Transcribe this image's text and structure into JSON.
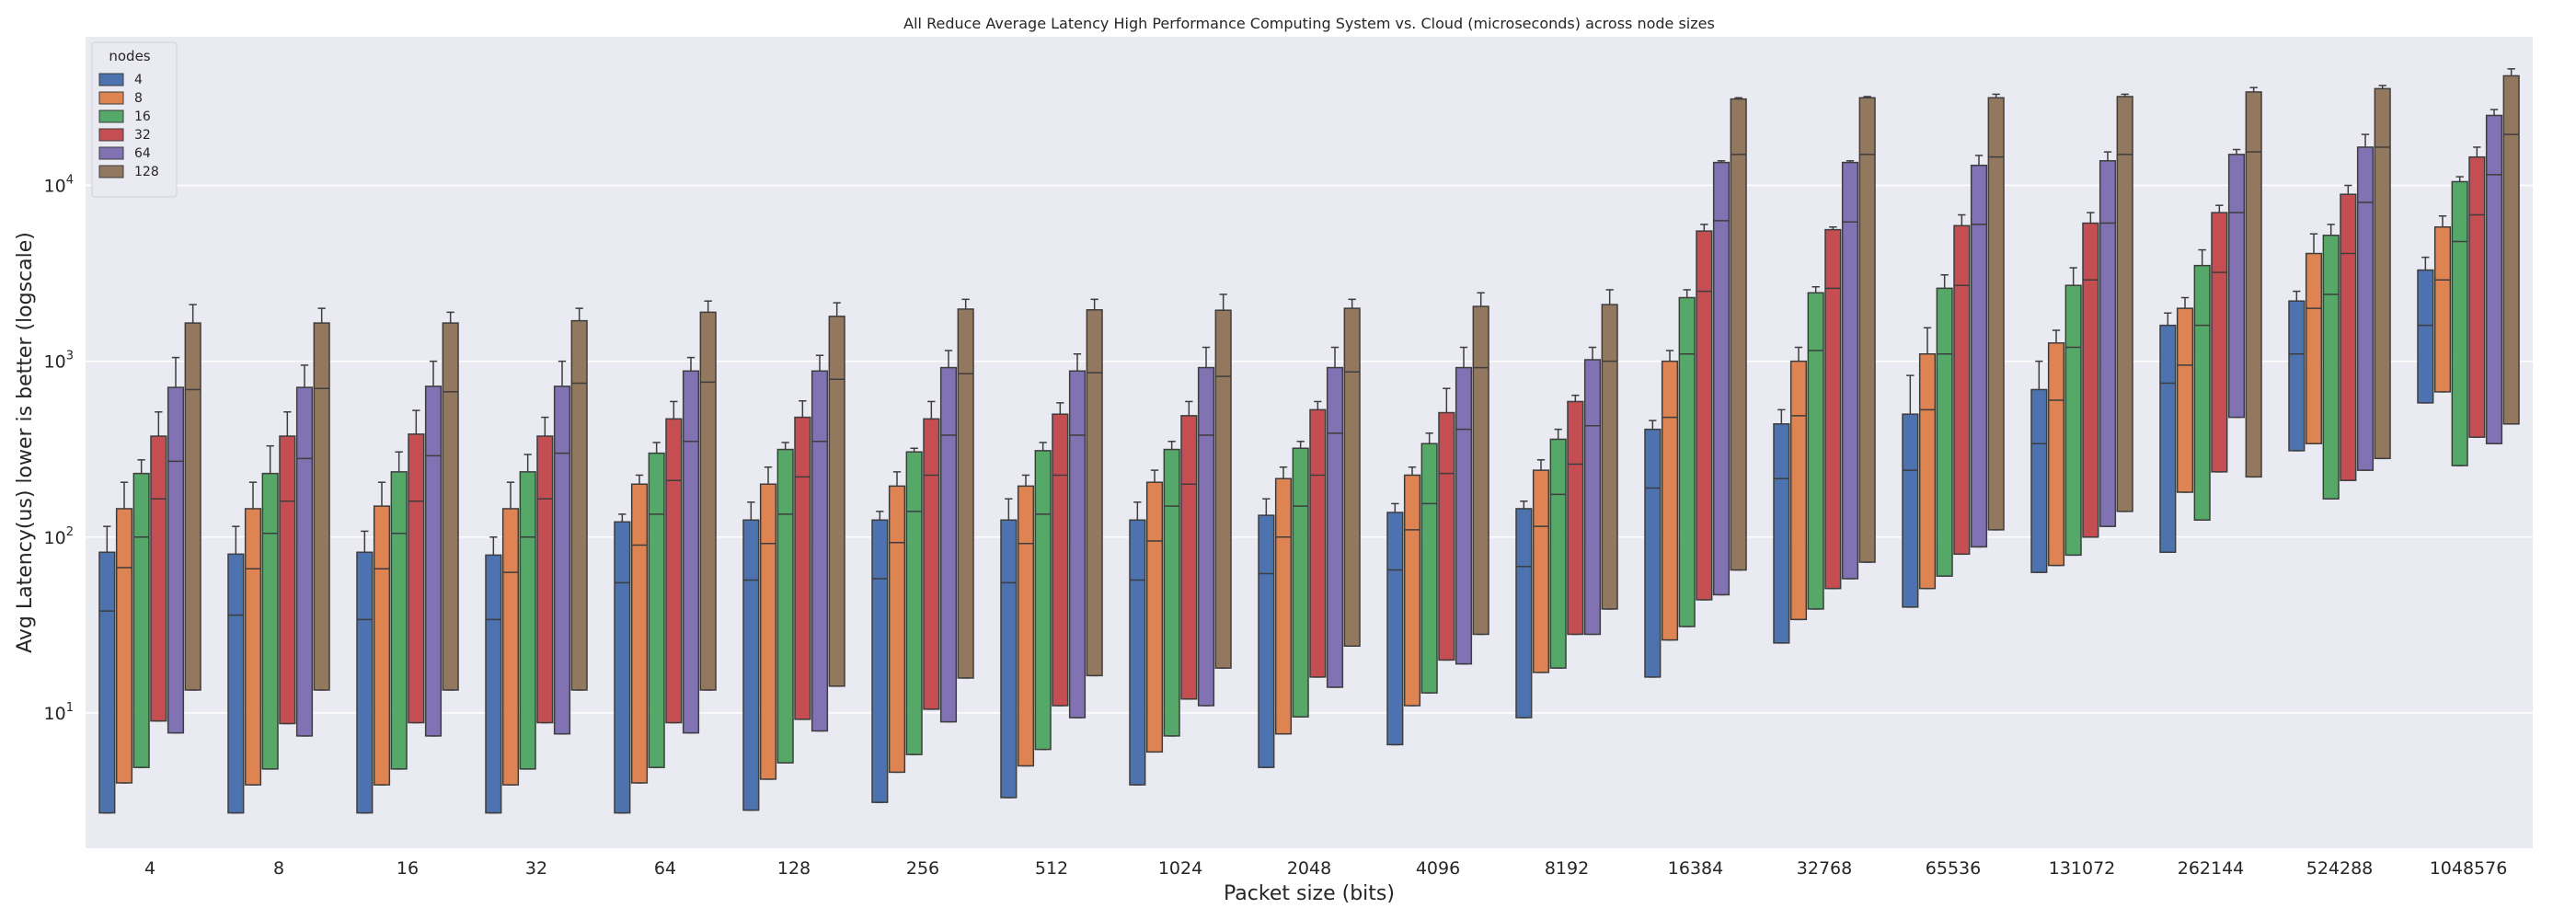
{
  "chart_data": {
    "type": "box",
    "title": "All Reduce Average Latency High Performance Computing System vs. Cloud (microseconds) across node sizes",
    "xlabel": "Packet size (bits)",
    "ylabel": "Avg Latency(us) lower is better (logscale)",
    "yscale": "log",
    "ylim": [
      1.7,
      70000
    ],
    "y_ticks": [
      {
        "value": 10,
        "base": "10",
        "exp": "1"
      },
      {
        "value": 100,
        "base": "10",
        "exp": "2"
      },
      {
        "value": 1000,
        "base": "10",
        "exp": "3"
      },
      {
        "value": 10000,
        "base": "10",
        "exp": "4"
      }
    ],
    "grid": true,
    "legend": {
      "title": "nodes",
      "position": "top-left"
    },
    "categories": [
      "4",
      "8",
      "16",
      "32",
      "64",
      "128",
      "256",
      "512",
      "1024",
      "2048",
      "4096",
      "8192",
      "16384",
      "32768",
      "65536",
      "131072",
      "262144",
      "524288",
      "1048576"
    ],
    "series": [
      {
        "name": "4",
        "color": "#4c72b0",
        "boxes": [
          [
            2.7,
            2.7,
            38,
            82,
            115
          ],
          [
            2.7,
            2.7,
            36,
            80,
            115
          ],
          [
            2.7,
            2.7,
            34,
            82,
            108
          ],
          [
            2.7,
            2.7,
            34,
            79,
            100
          ],
          [
            2.7,
            2.7,
            55,
            122,
            135
          ],
          [
            2.8,
            2.8,
            57,
            125,
            158
          ],
          [
            3.1,
            3.1,
            58,
            125,
            140
          ],
          [
            3.3,
            3.3,
            55,
            125,
            165
          ],
          [
            3.9,
            3.9,
            57,
            125,
            158
          ],
          [
            4.9,
            4.9,
            62,
            133,
            165
          ],
          [
            6.6,
            6.6,
            65,
            138,
            155
          ],
          [
            9.4,
            9.4,
            68,
            145,
            160
          ],
          [
            16,
            16,
            190,
            410,
            460
          ],
          [
            25,
            25,
            215,
            440,
            530
          ],
          [
            40,
            40,
            240,
            500,
            830
          ],
          [
            63,
            63,
            340,
            690,
            1000
          ],
          [
            82,
            82,
            750,
            1600,
            1880
          ],
          [
            310,
            310,
            1100,
            2200,
            2500
          ],
          [
            580,
            580,
            1600,
            3300,
            3900
          ]
        ]
      },
      {
        "name": "8",
        "color": "#dd8452",
        "boxes": [
          [
            4.0,
            4.0,
            67,
            145,
            205
          ],
          [
            3.9,
            3.9,
            66,
            145,
            205
          ],
          [
            3.9,
            3.9,
            66,
            150,
            205
          ],
          [
            3.9,
            3.9,
            63,
            145,
            205
          ],
          [
            4.0,
            4.0,
            90,
            200,
            225
          ],
          [
            4.2,
            4.2,
            92,
            200,
            250
          ],
          [
            4.6,
            4.6,
            93,
            195,
            235
          ],
          [
            5.0,
            5.0,
            92,
            195,
            225
          ],
          [
            6.0,
            6.0,
            95,
            205,
            240
          ],
          [
            7.6,
            7.6,
            100,
            215,
            250
          ],
          [
            11,
            11,
            110,
            225,
            250
          ],
          [
            17,
            17,
            115,
            240,
            275
          ],
          [
            26,
            26,
            480,
            1000,
            1150
          ],
          [
            34,
            34,
            490,
            1000,
            1200
          ],
          [
            51,
            51,
            530,
            1100,
            1550
          ],
          [
            69,
            69,
            600,
            1270,
            1500
          ],
          [
            180,
            180,
            950,
            2000,
            2300
          ],
          [
            340,
            340,
            2000,
            4100,
            5300
          ],
          [
            670,
            670,
            2900,
            5800,
            6700
          ]
        ]
      },
      {
        "name": "16",
        "color": "#55a868",
        "boxes": [
          [
            4.9,
            4.9,
            100,
            230,
            275
          ],
          [
            4.8,
            4.8,
            105,
            230,
            330
          ],
          [
            4.8,
            4.8,
            105,
            235,
            305
          ],
          [
            4.8,
            4.8,
            100,
            235,
            295
          ],
          [
            4.9,
            4.9,
            135,
            300,
            345
          ],
          [
            5.2,
            5.2,
            135,
            315,
            345
          ],
          [
            5.8,
            5.8,
            140,
            305,
            320
          ],
          [
            6.2,
            6.2,
            135,
            310,
            345
          ],
          [
            7.4,
            7.4,
            150,
            315,
            350
          ],
          [
            9.5,
            9.5,
            150,
            320,
            350
          ],
          [
            13,
            13,
            155,
            340,
            390
          ],
          [
            18,
            18,
            175,
            360,
            410
          ],
          [
            31,
            31,
            1100,
            2300,
            2550
          ],
          [
            39,
            39,
            1150,
            2450,
            2650
          ],
          [
            60,
            60,
            1100,
            2600,
            3100
          ],
          [
            79,
            79,
            1200,
            2700,
            3400
          ],
          [
            125,
            125,
            1600,
            3500,
            4300
          ],
          [
            165,
            165,
            2400,
            5200,
            6000
          ],
          [
            255,
            255,
            4800,
            10500,
            11200
          ]
        ]
      },
      {
        "name": "32",
        "color": "#c44e52",
        "boxes": [
          [
            9.0,
            9.0,
            165,
            375,
            515
          ],
          [
            8.7,
            8.7,
            160,
            375,
            515
          ],
          [
            8.8,
            8.8,
            160,
            385,
            525
          ],
          [
            8.8,
            8.8,
            165,
            375,
            480
          ],
          [
            8.8,
            8.8,
            210,
            470,
            590
          ],
          [
            9.2,
            9.2,
            220,
            480,
            595
          ],
          [
            10.5,
            10.5,
            225,
            470,
            590
          ],
          [
            11,
            11,
            225,
            500,
            580
          ],
          [
            12,
            12,
            200,
            490,
            590
          ],
          [
            16,
            16,
            225,
            530,
            590
          ],
          [
            20,
            20,
            230,
            510,
            700
          ],
          [
            28,
            28,
            260,
            590,
            640
          ],
          [
            44,
            44,
            2500,
            5500,
            6000
          ],
          [
            51,
            51,
            2600,
            5600,
            5800
          ],
          [
            80,
            80,
            2700,
            5900,
            6800
          ],
          [
            100,
            100,
            2900,
            6100,
            7000
          ],
          [
            235,
            235,
            3200,
            7000,
            7700
          ],
          [
            210,
            210,
            4100,
            8900,
            10000
          ],
          [
            370,
            370,
            6800,
            14500,
            16500
          ]
        ]
      },
      {
        "name": "64",
        "color": "#8172b3",
        "boxes": [
          [
            7.7,
            7.7,
            270,
            710,
            1050
          ],
          [
            7.4,
            7.4,
            280,
            710,
            950
          ],
          [
            7.4,
            7.4,
            290,
            720,
            1000
          ],
          [
            7.6,
            7.6,
            300,
            720,
            1000
          ],
          [
            7.7,
            7.7,
            350,
            880,
            1050
          ],
          [
            7.9,
            7.9,
            350,
            880,
            1080
          ],
          [
            8.9,
            8.9,
            380,
            920,
            1150
          ],
          [
            9.4,
            9.4,
            380,
            880,
            1100
          ],
          [
            11,
            11,
            380,
            920,
            1200
          ],
          [
            14,
            14,
            390,
            920,
            1200
          ],
          [
            19,
            19,
            410,
            920,
            1200
          ],
          [
            28,
            28,
            430,
            1020,
            1200
          ],
          [
            47,
            47,
            6300,
            13500,
            13800
          ],
          [
            58,
            58,
            6200,
            13500,
            13800
          ],
          [
            88,
            88,
            6000,
            13000,
            14800
          ],
          [
            115,
            115,
            6100,
            13800,
            15500
          ],
          [
            480,
            480,
            7000,
            15000,
            16000
          ],
          [
            240,
            240,
            8000,
            16500,
            19500
          ],
          [
            340,
            340,
            11500,
            25000,
            27000
          ]
        ]
      },
      {
        "name": "128",
        "color": "#937860",
        "boxes": [
          [
            13.5,
            13.5,
            690,
            1650,
            2100
          ],
          [
            13.5,
            13.5,
            700,
            1650,
            2000
          ],
          [
            13.5,
            13.5,
            670,
            1650,
            1900
          ],
          [
            13.5,
            13.5,
            750,
            1700,
            2000
          ],
          [
            13.5,
            13.5,
            760,
            1900,
            2200
          ],
          [
            14.2,
            14.2,
            790,
            1800,
            2150
          ],
          [
            15.8,
            15.8,
            850,
            1980,
            2250
          ],
          [
            16.3,
            16.3,
            860,
            1960,
            2250
          ],
          [
            18,
            18,
            820,
            1950,
            2400
          ],
          [
            24,
            24,
            870,
            2000,
            2250
          ],
          [
            28,
            28,
            920,
            2050,
            2450
          ],
          [
            39,
            39,
            1000,
            2100,
            2550
          ],
          [
            65,
            65,
            15000,
            31000,
            31500
          ],
          [
            72,
            72,
            15000,
            31500,
            32000
          ],
          [
            110,
            110,
            14500,
            31500,
            33000
          ],
          [
            140,
            140,
            15000,
            32000,
            33000
          ],
          [
            220,
            220,
            15500,
            34000,
            36000
          ],
          [
            280,
            280,
            16500,
            35500,
            37000
          ],
          [
            440,
            440,
            19500,
            42000,
            46000
          ]
        ]
      }
    ]
  }
}
